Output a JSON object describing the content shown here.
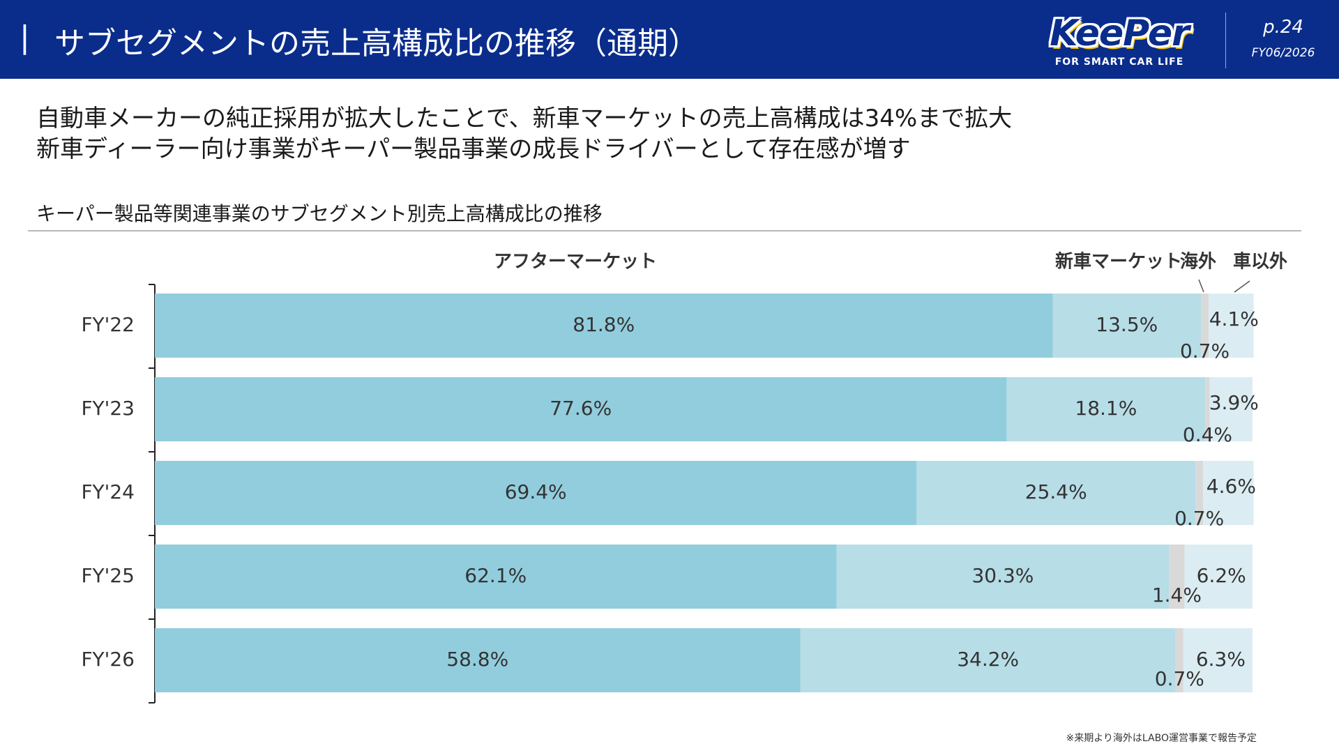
{
  "header": {
    "title": "サブセグメントの売上高構成比の推移（通期）",
    "logo_text": "KeePer",
    "logo_tagline": "FOR SMART CAR LIFE",
    "page": "p.24",
    "period": "FY06/2026",
    "bg_color": "#0a2d8c"
  },
  "headline": {
    "line1": "自動車メーカーの純正採用が拡大したことで、新車マーケットの売上高構成は34%まで拡大",
    "line2": "新車ディーラー向け事業がキーパー製品事業の成長ドライバーとして存在感が増す"
  },
  "subtitle": "キーパー製品等関連事業のサブセグメント別売上高構成比の推移",
  "footnote": "※来期より海外はLABO運営事業で報告予定",
  "chart_data": {
    "type": "bar",
    "orientation": "horizontal",
    "stacked": true,
    "percent_scale": true,
    "categories": [
      "FY'22",
      "FY'23",
      "FY'24",
      "FY'25",
      "FY'26"
    ],
    "series": [
      {
        "name": "アフターマーケット",
        "values": [
          81.8,
          77.6,
          69.4,
          62.1,
          58.8
        ],
        "labels": [
          "81.8%",
          "77.6%",
          "69.4%",
          "62.1%",
          "58.8%"
        ],
        "color": "#92cddd"
      },
      {
        "name": "新車マーケット",
        "values": [
          13.5,
          18.1,
          25.4,
          30.3,
          34.2
        ],
        "labels": [
          "13.5%",
          "18.1%",
          "25.4%",
          "30.3%",
          "34.2%"
        ],
        "color": "#b7dde7"
      },
      {
        "name": "海外",
        "values": [
          0.7,
          0.4,
          0.7,
          1.4,
          0.7
        ],
        "labels": [
          "0.7%",
          "0.4%",
          "0.7%",
          "1.4%",
          "0.7%"
        ],
        "color": "#d9d9d9"
      },
      {
        "name": "車以外",
        "values": [
          4.1,
          3.9,
          4.6,
          6.2,
          6.3
        ],
        "labels": [
          "4.1%",
          "3.9%",
          "4.6%",
          "6.2%",
          "6.3%"
        ],
        "color": "#dbedf2"
      }
    ]
  }
}
